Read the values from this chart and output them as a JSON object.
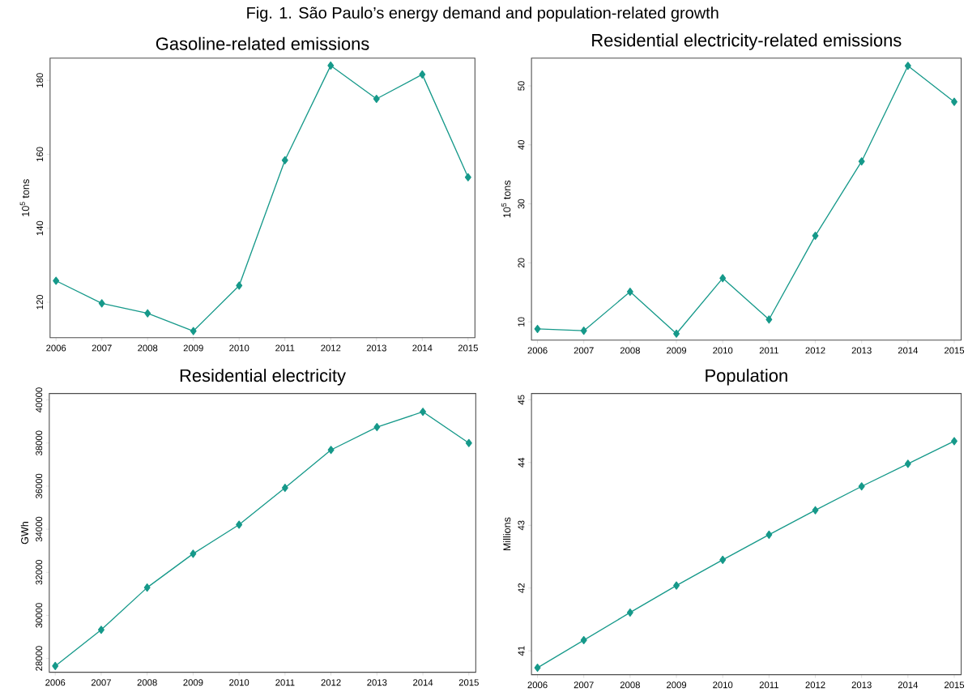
{
  "chart_data": [
    {
      "type": "line",
      "title": "Gasoline-related emissions",
      "ylabel": "10$^{5}$ tons",
      "annotations": [
        "Fig. 1. São Paulo’s energy demand and population-related growth"
      ],
      "categories": [
        "2006",
        "2007",
        "2008",
        "2009",
        "2010",
        "2011",
        "2012",
        "2013",
        "2014",
        "2015"
      ],
      "color": "#16998a",
      "marker": "diamond",
      "ylim": [
        110.4,
        186
      ],
      "yticks": [
        120,
        140,
        160,
        180
      ],
      "values": [
        125.8,
        119.7,
        117.0,
        112.2,
        124.5,
        158.4,
        184.0,
        175.0,
        181.6,
        153.8
      ]
    },
    {
      "type": "line",
      "title": "Residential electricity-related emissions",
      "ylabel": "10$^{5}$ tons",
      "categories": [
        "2006",
        "2007",
        "2008",
        "2009",
        "2010",
        "2011",
        "2012",
        "2013",
        "2014",
        "2015"
      ],
      "color": "#16998a",
      "marker": "diamond",
      "ylim": [
        6.9,
        54.7
      ],
      "yticks": [
        10,
        20,
        30,
        40,
        50
      ],
      "values": [
        8.8,
        8.5,
        15.1,
        8.0,
        17.4,
        10.4,
        24.6,
        37.2,
        53.4,
        47.3
      ]
    },
    {
      "type": "line",
      "title": "Residential electricity",
      "ylabel": "GWh",
      "categories": [
        "2006",
        "2007",
        "2008",
        "2009",
        "2010",
        "2011",
        "2012",
        "2013",
        "2014",
        "2015"
      ],
      "color": "#16998a",
      "marker": "diamond",
      "ylim": [
        27360,
        40300
      ],
      "yticks": [
        28000,
        30000,
        32000,
        34000,
        36000,
        38000,
        40000
      ],
      "values": [
        27650,
        29330,
        31290,
        32860,
        34210,
        35920,
        37680,
        38740,
        39450,
        38000
      ]
    },
    {
      "type": "line",
      "title": "Population",
      "ylabel": "Millions",
      "categories": [
        "2006",
        "2007",
        "2008",
        "2009",
        "2010",
        "2011",
        "2012",
        "2013",
        "2014",
        "2015"
      ],
      "color": "#16998a",
      "marker": "diamond",
      "ylim": [
        40.62,
        45.1
      ],
      "yticks": [
        41,
        42,
        43,
        44,
        45
      ],
      "values": [
        40.73,
        41.17,
        41.61,
        42.04,
        42.45,
        42.85,
        43.24,
        43.62,
        43.98,
        44.34
      ]
    }
  ]
}
